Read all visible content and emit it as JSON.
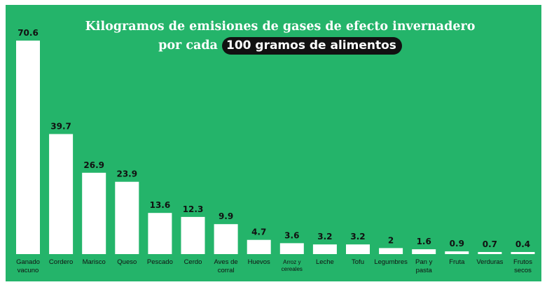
{
  "colors": {
    "background": "#24b46a",
    "bar": "#ffffff",
    "highlight": "#111111",
    "text_dark": "#111111",
    "text_light": "#ffffff"
  },
  "title": {
    "line1": "Kilogramos de emisiones de gases de efecto invernadero",
    "line2_prefix": "por cada",
    "line2_highlight": "100 gramos de alimentos"
  },
  "chart_data": {
    "type": "bar",
    "title": "Kilogramos de emisiones de gases de efecto invernadero por cada 100 gramos de alimentos",
    "categories": [
      [
        "Ganado",
        "vacuno"
      ],
      [
        "Cordero"
      ],
      [
        "Marisco"
      ],
      [
        "Queso"
      ],
      [
        "Pescado"
      ],
      [
        "Cerdo"
      ],
      [
        "Aves de",
        "corral"
      ],
      [
        "Huevos"
      ],
      [
        "Arroz y",
        "cereales"
      ],
      [
        "Leche"
      ],
      [
        "Tofu"
      ],
      [
        "Legumbres"
      ],
      [
        "Pan y",
        "pasta"
      ],
      [
        "Fruta"
      ],
      [
        "Verduras"
      ],
      [
        "Frutos",
        "secos"
      ]
    ],
    "values": [
      70.6,
      39.7,
      26.9,
      23.9,
      13.6,
      12.3,
      9.9,
      4.7,
      3.6,
      3.2,
      3.2,
      2,
      1.6,
      0.9,
      0.7,
      0.4
    ],
    "value_labels": [
      "70.6",
      "39.7",
      "26.9",
      "23.9",
      "13.6",
      "12.3",
      "9.9",
      "4.7",
      "3.6",
      "3.2",
      "3.2",
      "2",
      "1.6",
      "0.9",
      "0.7",
      "0.4"
    ],
    "ylim": [
      0,
      70.6
    ],
    "grid": false,
    "legend": "none"
  }
}
